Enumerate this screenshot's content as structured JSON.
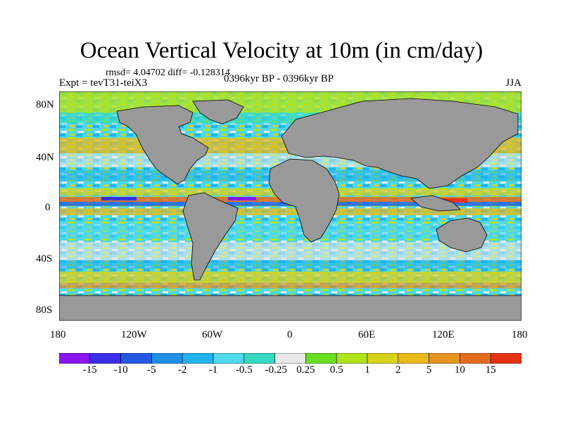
{
  "title": "Ocean Vertical Velocity at 10m (in cm/day)",
  "stats": "rmsd= 4.04702 diff= -0.128314",
  "experiment": "Expt = tevT31-teiX3",
  "period": "0396kyr BP - 0396kyr BP",
  "season": "JJA",
  "lat_labels": [
    "80N",
    "40N",
    "0",
    "40S",
    "80S"
  ],
  "lon_labels": [
    "180",
    "120W",
    "60W",
    "0",
    "60E",
    "120E",
    "180"
  ],
  "colorbar": {
    "labels": [
      "-15",
      "-10",
      "-5",
      "-2",
      "-1",
      "-0.5",
      "-0.25",
      "0.25",
      "0.5",
      "1",
      "2",
      "5",
      "10",
      "15"
    ],
    "colors": [
      "#8a17f0",
      "#3a2ee8",
      "#2458e3",
      "#1f8fe8",
      "#22b4ee",
      "#4fd8ec",
      "#36d9c2",
      "#e8e8e8",
      "#6ade22",
      "#b0e31b",
      "#d8d21b",
      "#e9b91a",
      "#e79420",
      "#e46b1c",
      "#e53312"
    ]
  },
  "colors": {
    "land": "#999999",
    "coast": "#000000"
  }
}
